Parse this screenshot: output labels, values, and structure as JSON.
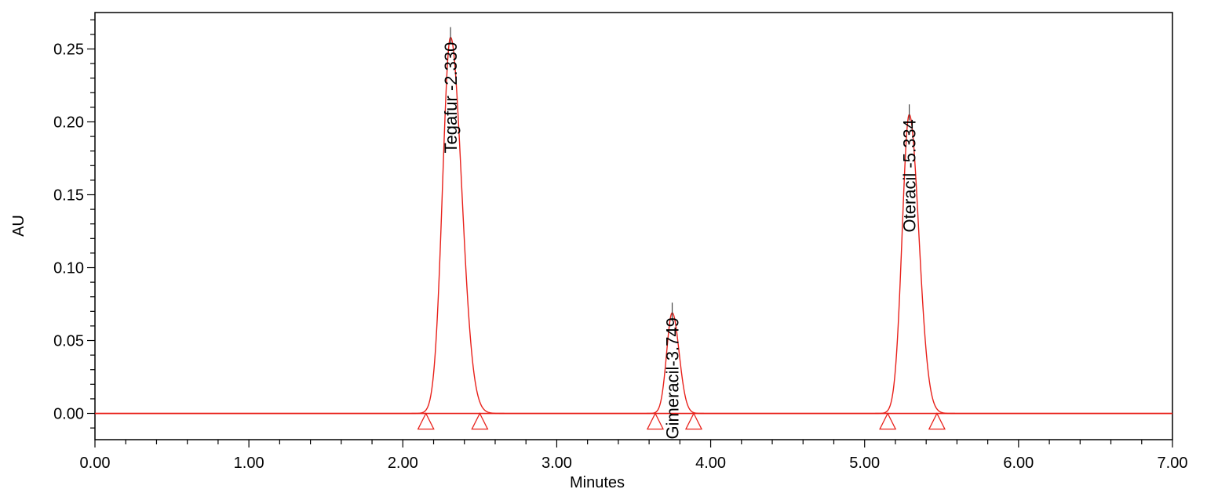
{
  "chart_data": {
    "type": "line",
    "title": "",
    "xlabel": "Minutes",
    "ylabel": "AU",
    "xlim": [
      0.0,
      7.0
    ],
    "ylim": [
      -0.018,
      0.275
    ],
    "x_ticks": [
      0.0,
      1.0,
      2.0,
      3.0,
      4.0,
      5.0,
      6.0,
      7.0
    ],
    "x_tick_labels": [
      "0.00",
      "1.00",
      "2.00",
      "3.00",
      "4.00",
      "5.00",
      "6.00",
      "7.00"
    ],
    "y_ticks": [
      0.0,
      0.05,
      0.1,
      0.15,
      0.2,
      0.25
    ],
    "y_tick_labels": [
      "0.00",
      "0.05",
      "0.10",
      "0.15",
      "0.20",
      "0.25"
    ],
    "baseline": 0.0,
    "grid": false,
    "colors": {
      "trace": "#e8201a",
      "axes": "#000000",
      "label": "#000000"
    },
    "peaks": [
      {
        "label": "Tegafur -2.330",
        "retention_time": 2.33,
        "apex_x": 2.31,
        "height": 0.258,
        "sigma_left": 0.052,
        "sigma_right": 0.072,
        "start": 2.15,
        "end": 2.5
      },
      {
        "label": "Gimeracil-3.749",
        "retention_time": 3.749,
        "apex_x": 3.75,
        "height": 0.069,
        "sigma_left": 0.036,
        "sigma_right": 0.045,
        "start": 3.64,
        "end": 3.89
      },
      {
        "label": "Oteracil -5.334",
        "retention_time": 5.334,
        "apex_x": 5.29,
        "height": 0.205,
        "sigma_left": 0.046,
        "sigma_right": 0.062,
        "start": 5.15,
        "end": 5.47
      }
    ]
  }
}
